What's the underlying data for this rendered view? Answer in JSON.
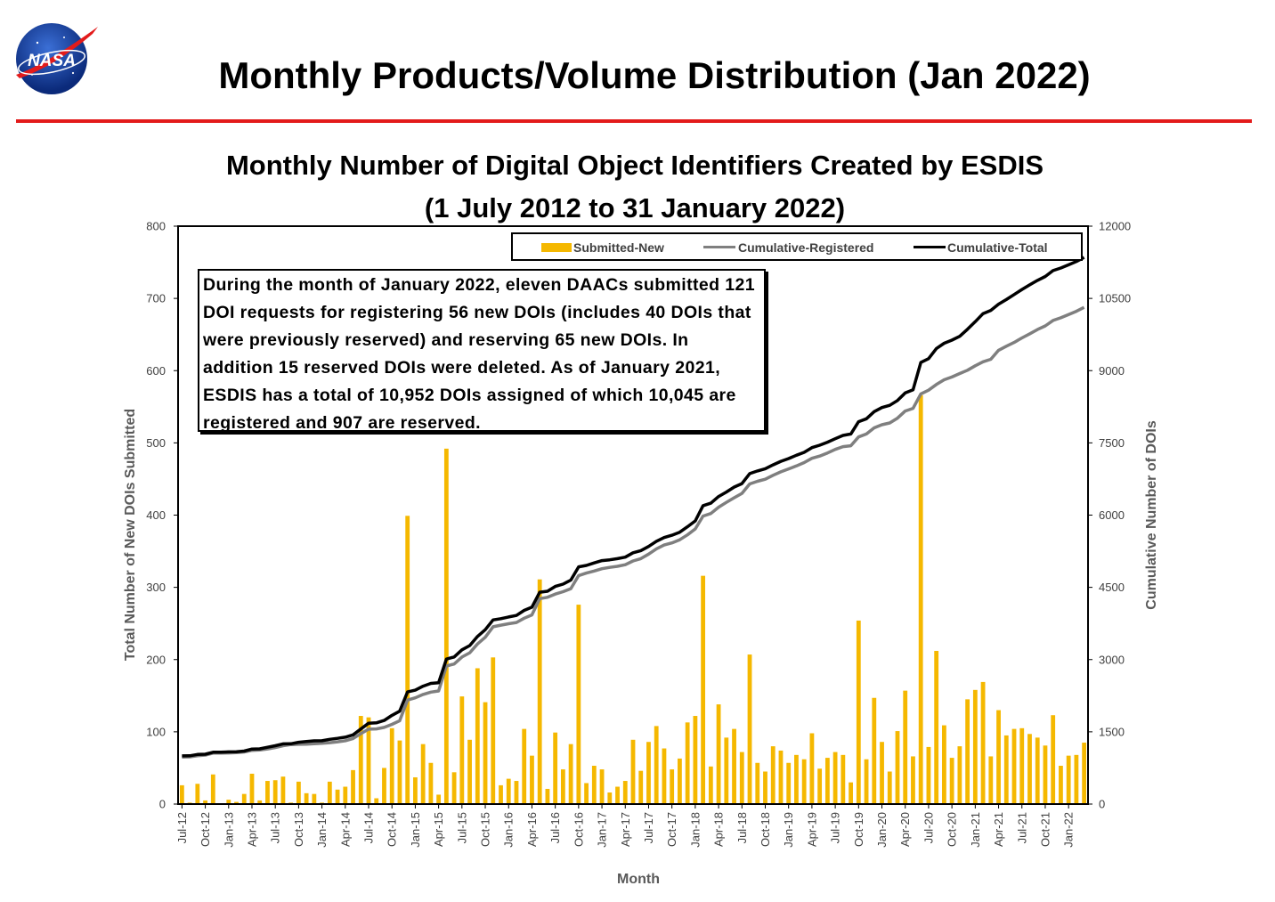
{
  "slide_title": "Monthly Products/Volume Distribution (Jan 2022)",
  "logo_text": "NASA",
  "colors": {
    "bar": "#f5b800",
    "registered": "#7f7f7f",
    "total": "#000000",
    "rule": "#e31b1b"
  },
  "chart_data": {
    "type": "bar",
    "title": "Monthly Number of Digital Object Identifiers Created by ESDIS",
    "subtitle": "(1 July 2012 to 31 January 2022)",
    "xlabel": "Month",
    "ylabel": "Total Number of New DOIs Submitted",
    "y2label": "Cumulative Number of DOIs",
    "ylim": [
      0,
      800
    ],
    "y2lim": [
      0,
      12000
    ],
    "yticks": [
      0,
      100,
      200,
      300,
      400,
      500,
      600,
      700,
      800
    ],
    "y2ticks": [
      0,
      1500,
      3000,
      4500,
      6000,
      7500,
      9000,
      10500,
      12000
    ],
    "grid": false,
    "legend_position": "top-right",
    "xtick_labels": [
      "Jul-12",
      "Oct-12",
      "Jan-13",
      "Apr-13",
      "Jul-13",
      "Oct-13",
      "Jan-14",
      "Apr-14",
      "Jul-14",
      "Oct-14",
      "Jan-15",
      "Apr-15",
      "Jul-15",
      "Oct-15",
      "Jan-16",
      "Apr-16",
      "Jul-16",
      "Oct-16",
      "Jan-17",
      "Apr-17",
      "Jul-17",
      "Oct-17",
      "Jan-18",
      "Apr-18",
      "Jul-18",
      "Oct-18",
      "Jan-19",
      "Apr-19",
      "Jul-19",
      "Oct-19",
      "Jan-20",
      "Apr-20",
      "Jul-20",
      "Oct-20",
      "Jan-21",
      "Apr-21",
      "Jul-21",
      "Oct-21",
      "Jan-22"
    ],
    "series": [
      {
        "name": "Submitted-New",
        "type": "bar",
        "axis": "left",
        "values": [
          26,
          2,
          28,
          5,
          41,
          1,
          6,
          3,
          14,
          42,
          5,
          32,
          33,
          38,
          2,
          31,
          15,
          14,
          2,
          31,
          20,
          24,
          47,
          122,
          120,
          8,
          50,
          105,
          88,
          399,
          37,
          83,
          57,
          13,
          492,
          44,
          149,
          89,
          188,
          141,
          203,
          26,
          35,
          32,
          104,
          67,
          311,
          21,
          99,
          48,
          83,
          276,
          29,
          53,
          48,
          16,
          24,
          32,
          89,
          46,
          86,
          108,
          77,
          48,
          63,
          113,
          122,
          316,
          52,
          138,
          92,
          104,
          72,
          207,
          57,
          45,
          80,
          74,
          57,
          68,
          62,
          98,
          49,
          64,
          72,
          68,
          30,
          254,
          62,
          147,
          86,
          45,
          101,
          157,
          66,
          566,
          79,
          212,
          109,
          64,
          80,
          145,
          158,
          169,
          66,
          130,
          95,
          104,
          105,
          97,
          92,
          81,
          123,
          53,
          67,
          68,
          85
        ]
      },
      {
        "name": "Cumulative-Registered",
        "type": "line",
        "axis": "right",
        "values": [
          977,
          980,
          1002,
          1017,
          1058,
          1057,
          1062,
          1068,
          1082,
          1115,
          1123,
          1144,
          1175,
          1211,
          1235,
          1240,
          1243,
          1251,
          1261,
          1274,
          1293,
          1314,
          1361,
          1463,
          1555,
          1561,
          1592,
          1655,
          1731,
          2159,
          2206,
          2276,
          2325,
          2348,
          2866,
          2908,
          3052,
          3142,
          3325,
          3463,
          3682,
          3715,
          3744,
          3771,
          3859,
          3928,
          4266,
          4294,
          4360,
          4409,
          4473,
          4745,
          4796,
          4838,
          4887,
          4914,
          4937,
          4971,
          5047,
          5095,
          5190,
          5300,
          5378,
          5423,
          5487,
          5590,
          5714,
          5979,
          6033,
          6164,
          6264,
          6361,
          6451,
          6648,
          6702,
          6746,
          6827,
          6899,
          6959,
          7021,
          7090,
          7179,
          7225,
          7290,
          7364,
          7421,
          7441,
          7623,
          7685,
          7812,
          7876,
          7913,
          8013,
          8161,
          8217,
          8516,
          8595,
          8712,
          8810,
          8867,
          8939,
          9008,
          9100,
          9184,
          9235,
          9423,
          9508,
          9586,
          9680,
          9765,
          9854,
          9929,
          10041,
          10098,
          10165,
          10232,
          10314
        ]
      },
      {
        "name": "Cumulative-Total",
        "type": "line",
        "axis": "right",
        "values": [
          1000,
          1002,
          1030,
          1035,
          1076,
          1077,
          1083,
          1086,
          1100,
          1142,
          1147,
          1179,
          1212,
          1250,
          1252,
          1283,
          1298,
          1312,
          1314,
          1345,
          1365,
          1389,
          1436,
          1558,
          1678,
          1686,
          1736,
          1841,
          1929,
          2328,
          2365,
          2448,
          2505,
          2518,
          3010,
          3054,
          3203,
          3292,
          3480,
          3621,
          3824,
          3850,
          3885,
          3917,
          4021,
          4088,
          4399,
          4420,
          4519,
          4567,
          4650,
          4926,
          4955,
          5008,
          5056,
          5072,
          5096,
          5128,
          5217,
          5263,
          5349,
          5457,
          5534,
          5582,
          5645,
          5758,
          5880,
          6196,
          6248,
          6386,
          6478,
          6582,
          6654,
          6861,
          6918,
          6963,
          7043,
          7117,
          7174,
          7242,
          7304,
          7402,
          7451,
          7515,
          7587,
          7655,
          7685,
          7939,
          8001,
          8148,
          8234,
          8279,
          8380,
          8537,
          8603,
          9169,
          9248,
          9460,
          9569,
          9633,
          9713,
          9858,
          10016,
          10185,
          10251,
          10381,
          10476,
          10580,
          10685,
          10782,
          10874,
          10955,
          11078,
          11131,
          11198,
          11266,
          11351
        ]
      }
    ],
    "annotation": "During the month of January 2022, eleven DAACs submitted 121 DOI requests for registering 56 new DOIs (includes 40 DOIs that were previously reserved) and reserving 65 new DOIs. In addition 15 reserved DOIs were deleted. As of January 2021, ESDIS has a total of 10,952 DOIs assigned of which 10,045 are registered and 907 are reserved."
  }
}
